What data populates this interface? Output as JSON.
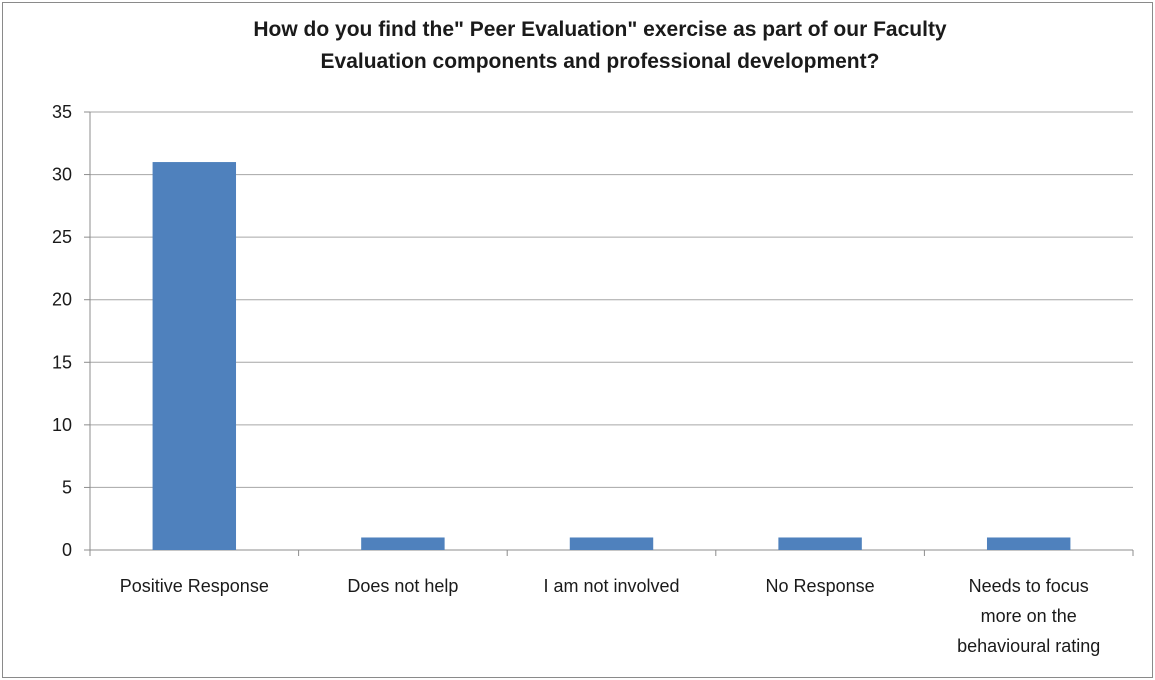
{
  "chart_data": {
    "type": "bar",
    "title_lines": [
      "How do you find the\" Peer Evaluation\" exercise as part of our Faculty",
      "Evaluation components and professional development?"
    ],
    "categories": [
      [
        "Positive Response"
      ],
      [
        "Does not help"
      ],
      [
        "I am not involved"
      ],
      [
        "No Response"
      ],
      [
        "Needs to focus",
        "more on the",
        "behavioural rating"
      ]
    ],
    "values": [
      31,
      1,
      1,
      1,
      1
    ],
    "ylim": [
      0,
      35
    ],
    "yticks": [
      0,
      5,
      10,
      15,
      20,
      25,
      30,
      35
    ],
    "grid": true,
    "legend": "none",
    "bar_color": "#4f81bd",
    "grid_color": "#a6a6a6",
    "axis_color": "#8c8c8c"
  }
}
